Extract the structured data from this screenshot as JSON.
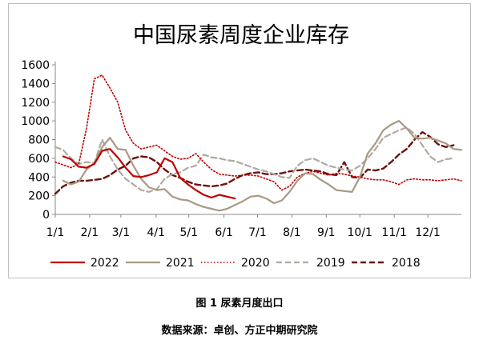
{
  "chart_data": {
    "type": "line",
    "title": "中国尿素周度企业库存",
    "xlabel": "",
    "ylabel": "",
    "ylim": [
      0,
      1600
    ],
    "yticks": [
      0,
      200,
      400,
      600,
      800,
      1000,
      1200,
      1400,
      1600
    ],
    "xlim": [
      1,
      53
    ],
    "xticks": [
      {
        "label": "1/1",
        "week": 1
      },
      {
        "label": "2/1",
        "week": 5.4
      },
      {
        "label": "3/1",
        "week": 9.4
      },
      {
        "label": "4/1",
        "week": 13.9
      },
      {
        "label": "5/1",
        "week": 18.1
      },
      {
        "label": "6/1",
        "week": 22.6
      },
      {
        "label": "7/1",
        "week": 26.9
      },
      {
        "label": "8/1",
        "week": 31.3
      },
      {
        "label": "9/1",
        "week": 35.7
      },
      {
        "label": "10/1",
        "week": 40.0
      },
      {
        "label": "11/1",
        "week": 44.4
      },
      {
        "label": "12/1",
        "week": 48.7
      }
    ],
    "grid": false,
    "legend_position": "bottom",
    "series": [
      {
        "name": "2022",
        "color": "#c00000",
        "dash": "solid",
        "x": [
          2,
          3,
          4,
          5,
          6,
          7,
          8,
          9,
          10,
          11,
          12,
          13,
          14,
          15,
          16,
          17,
          18,
          19,
          20,
          21,
          22,
          23,
          24
        ],
        "y": [
          620,
          590,
          510,
          500,
          540,
          680,
          700,
          610,
          500,
          410,
          400,
          420,
          450,
          600,
          560,
          390,
          320,
          260,
          210,
          180,
          210,
          190,
          170
        ]
      },
      {
        "name": "2021",
        "color": "#a89a82",
        "dash": "solid",
        "x": [
          2,
          3,
          4,
          5,
          6,
          7,
          8,
          9,
          10,
          11,
          12,
          13,
          14,
          15,
          16,
          17,
          18,
          19,
          20,
          21,
          22,
          23,
          24,
          25,
          26,
          27,
          28,
          29,
          30,
          31,
          32,
          33,
          34,
          35,
          36,
          37,
          38,
          39,
          40,
          41,
          42,
          43,
          44,
          45,
          46,
          47,
          48,
          49,
          50,
          51,
          52,
          53
        ],
        "y": [
          360,
          320,
          350,
          480,
          550,
          720,
          820,
          700,
          690,
          520,
          380,
          290,
          260,
          270,
          190,
          160,
          150,
          110,
          80,
          60,
          40,
          60,
          100,
          140,
          190,
          200,
          170,
          120,
          150,
          240,
          360,
          440,
          430,
          370,
          320,
          260,
          250,
          240,
          400,
          650,
          760,
          900,
          960,
          1000,
          920,
          820,
          810,
          820,
          790,
          760,
          700,
          690
        ]
      },
      {
        "name": "2020",
        "color": "#c00000",
        "dash": "dot",
        "x": [
          1,
          2,
          3,
          4,
          5,
          6,
          7,
          8,
          9,
          10,
          11,
          12,
          13,
          14,
          15,
          16,
          17,
          18,
          19,
          20,
          21,
          22,
          23,
          24,
          25,
          26,
          27,
          28,
          29,
          30,
          31,
          32,
          33,
          34,
          35,
          36,
          37,
          38,
          39,
          40,
          41,
          42,
          43,
          44,
          45,
          46,
          47,
          48,
          49,
          50,
          51,
          52,
          53
        ],
        "y": [
          560,
          530,
          500,
          540,
          920,
          1450,
          1490,
          1350,
          1200,
          900,
          760,
          700,
          720,
          740,
          680,
          620,
          590,
          600,
          650,
          560,
          480,
          430,
          420,
          410,
          420,
          420,
          410,
          380,
          350,
          260,
          300,
          400,
          440,
          460,
          440,
          420,
          440,
          430,
          410,
          400,
          380,
          370,
          370,
          350,
          320,
          370,
          380,
          370,
          370,
          360,
          370,
          380,
          360
        ]
      },
      {
        "name": "2019",
        "color": "#b0aaa2",
        "dash": "dash",
        "x": [
          1,
          2,
          3,
          4,
          5,
          6,
          7,
          8,
          9,
          10,
          11,
          12,
          13,
          14,
          15,
          16,
          17,
          18,
          19,
          20,
          21,
          22,
          23,
          24,
          25,
          26,
          27,
          28,
          29,
          30,
          31,
          32,
          33,
          34,
          35,
          36,
          37,
          38,
          39,
          40,
          41,
          42,
          43,
          44,
          45,
          46,
          47,
          48,
          49,
          50,
          51,
          52
        ],
        "y": [
          720,
          690,
          600,
          540,
          560,
          550,
          800,
          620,
          480,
          380,
          320,
          260,
          240,
          270,
          380,
          430,
          450,
          500,
          520,
          640,
          610,
          600,
          580,
          570,
          540,
          510,
          480,
          460,
          430,
          400,
          390,
          520,
          580,
          600,
          560,
          520,
          500,
          480,
          470,
          520,
          600,
          700,
          820,
          860,
          900,
          930,
          860,
          740,
          620,
          560,
          590,
          600
        ]
      },
      {
        "name": "2018",
        "color": "#6e1010",
        "dash": "dash",
        "x": [
          1,
          2,
          3,
          4,
          5,
          6,
          7,
          8,
          9,
          10,
          11,
          12,
          13,
          14,
          15,
          16,
          17,
          18,
          19,
          20,
          21,
          22,
          23,
          24,
          25,
          26,
          27,
          28,
          29,
          30,
          31,
          32,
          33,
          34,
          35,
          36,
          37,
          38,
          39,
          40,
          41,
          42,
          43,
          44,
          45,
          46,
          47,
          48,
          49,
          50,
          51,
          52
        ],
        "y": [
          220,
          300,
          340,
          360,
          360,
          370,
          380,
          420,
          480,
          520,
          600,
          620,
          610,
          560,
          480,
          420,
          390,
          350,
          320,
          310,
          300,
          310,
          330,
          380,
          420,
          440,
          450,
          430,
          430,
          440,
          460,
          470,
          480,
          470,
          460,
          430,
          420,
          560,
          400,
          390,
          480,
          470,
          490,
          560,
          640,
          700,
          800,
          880,
          830,
          750,
          720,
          740
        ]
      }
    ]
  },
  "captions": {
    "figure": "图 1  尿素月度出口",
    "source": "数据来源：卓创、方正中期研究院"
  }
}
